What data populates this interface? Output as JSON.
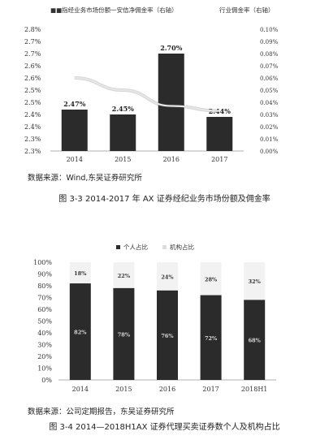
{
  "chart_data": [
    {
      "type": "bar",
      "legend_left": "■■指经业务市场份额一安佶净佣金率（右轴）",
      "legend_right": "行业佣金率（右轴）",
      "categories": [
        "2014",
        "2015",
        "2016",
        "2017"
      ],
      "values": [
        2.47,
        2.45,
        2.7,
        2.44
      ],
      "value_labels": [
        "2.47%",
        "2.45%",
        "2.70%",
        "2.44%"
      ],
      "ylim": [
        2.3,
        2.8
      ],
      "left_ticks": [
        "2.8%",
        "2.7%",
        "2.7%",
        "2.6%",
        "2.6%",
        "2.5%",
        "2.5%",
        "2.4%",
        "2.4%",
        "2.3%",
        "2.3%"
      ],
      "right_ticks": [
        "0.10%",
        "0.09%",
        "0.08%",
        "0.07%",
        "0.06%",
        "0.05%",
        "0.04%",
        "0.03%",
        "0.02%",
        "0.01%",
        "0.00%"
      ],
      "line_series": {
        "values": [
          0.06,
          0.05,
          0.037,
          0.033
        ],
        "ylim": [
          0.0,
          0.1
        ]
      },
      "source": "数据来源：Wind,东吴证券研究所",
      "caption": "图 3-3 2014-2017 年 AX 证券经纪业务市场份额及佣金率"
    },
    {
      "type": "bar",
      "stacked": true,
      "categories": [
        "2014",
        "2015",
        "2016",
        "2017",
        "2018H1"
      ],
      "ylim": [
        0,
        100
      ],
      "y_ticks": [
        "100%",
        "90%",
        "80%",
        "70%",
        "60%",
        "50%",
        "40%",
        "30%",
        "20%",
        "10%",
        "0%"
      ],
      "series": [
        {
          "name": "个人占比",
          "values": [
            82,
            78,
            76,
            72,
            68
          ],
          "labels": [
            "82%",
            "78%",
            "76%",
            "72%",
            "68%"
          ]
        },
        {
          "name": "机构占比",
          "values": [
            18,
            22,
            24,
            28,
            32
          ],
          "labels": [
            "18%",
            "22%",
            "24%",
            "28%",
            "32%"
          ]
        }
      ],
      "source": "数据来源：公司定期报告，东吴证券研究所",
      "caption": "图 3-4 2014—2018H1AX 证券代理买卖证券数个人及机构占比"
    }
  ],
  "colors": {
    "bar_dark": "#2b2b2b",
    "line_light": "#e6e6e6",
    "series_light": "#f2f2f2"
  }
}
